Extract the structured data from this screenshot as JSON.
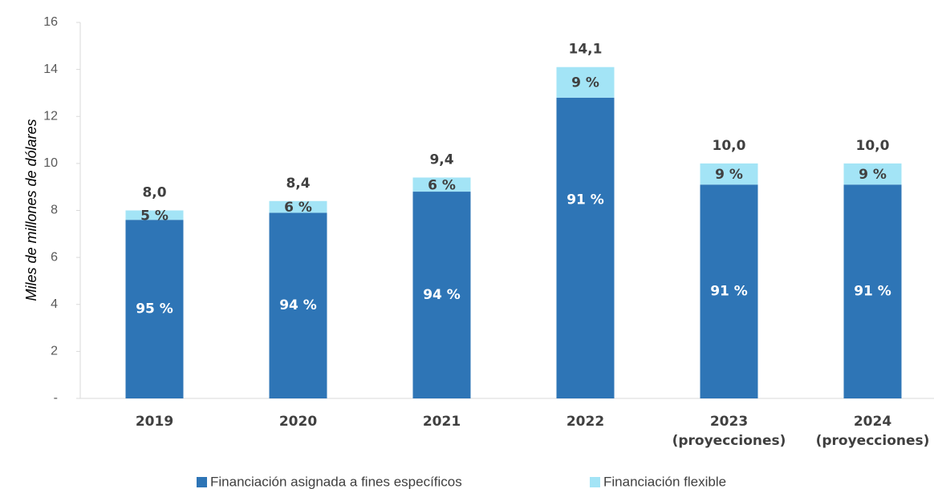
{
  "chart_data": {
    "type": "stacked_bar",
    "y_label": "Miles de millones de dólares",
    "categories": [
      [
        "2019"
      ],
      [
        "2020"
      ],
      [
        "2021"
      ],
      [
        "2022"
      ],
      [
        "2023",
        "(proyecciones)"
      ],
      [
        "2024",
        "(proyecciones)"
      ]
    ],
    "series": [
      {
        "name": "Financiación asignada a fines específicos",
        "color": "#2e75b6",
        "values": [
          7.6,
          7.9,
          8.8,
          12.8,
          9.1,
          9.1
        ],
        "shares": [
          95,
          94,
          94,
          91,
          91,
          91
        ],
        "share_labels": [
          "95 %",
          "94 %",
          "94 %",
          "91 %",
          "91 %",
          "91 %"
        ]
      },
      {
        "name": "Financiación flexible",
        "color": "#a3e4f6",
        "values": [
          0.4,
          0.5,
          0.6,
          1.3,
          0.9,
          0.9
        ],
        "shares": [
          5,
          6,
          6,
          9,
          9,
          9
        ],
        "share_labels": [
          "5 %",
          "6 %",
          "6 %",
          "9 %",
          "9 %",
          "9 %"
        ]
      }
    ],
    "totals": [
      8.0,
      8.4,
      9.4,
      14.1,
      10.0,
      10.0
    ],
    "total_labels": [
      "8,0",
      "8,4",
      "9,4",
      "14,1",
      "10,0",
      "10,0"
    ],
    "ylim": [
      0,
      16
    ],
    "yticks": [
      {
        "value": 0,
        "label": "-"
      },
      2,
      4,
      6,
      8,
      10,
      12,
      14,
      16
    ],
    "legend": "bottom"
  }
}
